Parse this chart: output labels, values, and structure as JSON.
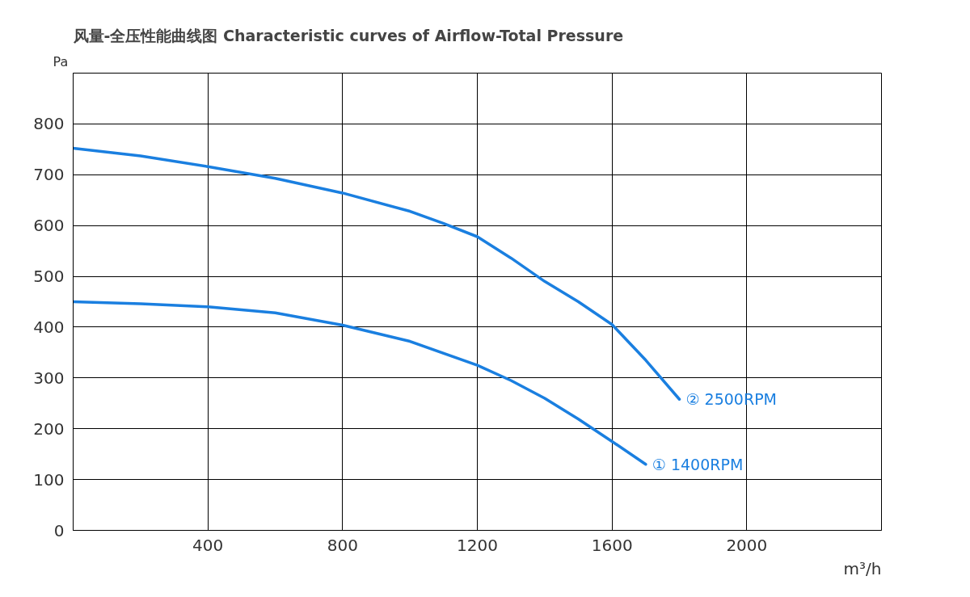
{
  "chart_data": {
    "type": "line",
    "title": "风量-全压性能曲线图 Characteristic curves of Airflow-Total Pressure",
    "xlabel": "m³/h",
    "ylabel": "Pa",
    "xlim": [
      0,
      2400
    ],
    "ylim": [
      0,
      900
    ],
    "xticks": [
      400,
      800,
      1200,
      1600,
      2000
    ],
    "yticks": [
      0,
      100,
      200,
      300,
      400,
      500,
      600,
      700,
      800
    ],
    "grid": true,
    "marker": "none",
    "line_style": "solid",
    "series": [
      {
        "name": "② 2500RPM",
        "color": "#1a7fe0",
        "x": [
          0,
          200,
          400,
          600,
          800,
          1000,
          1100,
          1200,
          1300,
          1400,
          1500,
          1600,
          1700,
          1800
        ],
        "values": [
          752,
          737,
          716,
          693,
          664,
          628,
          604,
          578,
          536,
          490,
          450,
          405,
          335,
          258
        ]
      },
      {
        "name": "① 1400RPM",
        "color": "#1a7fe0",
        "x": [
          0,
          200,
          400,
          600,
          800,
          1000,
          1200,
          1300,
          1400,
          1500,
          1600,
          1700
        ],
        "values": [
          450,
          446,
          440,
          428,
          404,
          372,
          325,
          295,
          260,
          219,
          175,
          130
        ]
      }
    ]
  }
}
